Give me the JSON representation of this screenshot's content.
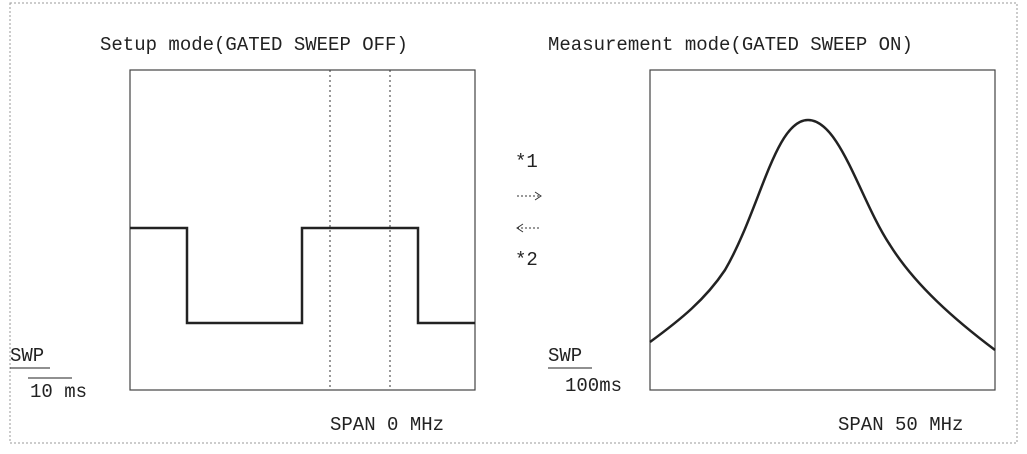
{
  "left_panel": {
    "title": "Setup mode(GATED SWEEP OFF)",
    "sweep_label": "SWP",
    "sweep_time": "10 ms",
    "span": "SPAN 0 MHz"
  },
  "right_panel": {
    "title": "Measurement mode(GATED SWEEP ON)",
    "sweep_label": "SWP",
    "sweep_time": "100ms",
    "span": "SPAN 50 MHz"
  },
  "markers": [
    "*1",
    "*2"
  ]
}
